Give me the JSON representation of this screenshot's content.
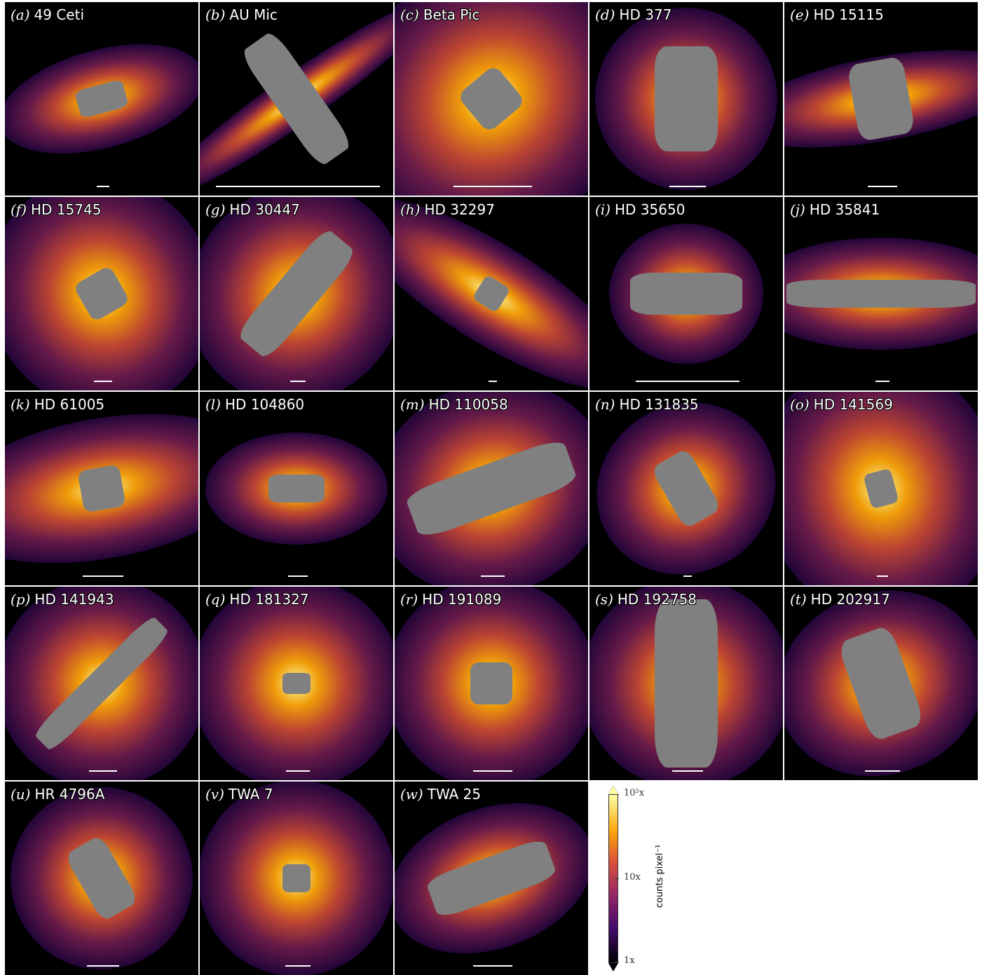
{
  "panels": [
    {
      "tag": "(a)",
      "name": "49 Ceti"
    },
    {
      "tag": "(b)",
      "name": "AU Mic"
    },
    {
      "tag": "(c)",
      "name": "Beta Pic"
    },
    {
      "tag": "(d)",
      "name": "HD 377"
    },
    {
      "tag": "(e)",
      "name": "HD 15115"
    },
    {
      "tag": "(f)",
      "name": "HD 15745"
    },
    {
      "tag": "(g)",
      "name": "HD 30447"
    },
    {
      "tag": "(h)",
      "name": "HD 32297"
    },
    {
      "tag": "(i)",
      "name": "HD 35650"
    },
    {
      "tag": "(j)",
      "name": "HD 35841"
    },
    {
      "tag": "(k)",
      "name": "HD 61005"
    },
    {
      "tag": "(l)",
      "name": "HD 104860"
    },
    {
      "tag": "(m)",
      "name": "HD 110058"
    },
    {
      "tag": "(n)",
      "name": "HD 131835"
    },
    {
      "tag": "(o)",
      "name": "HD 141569"
    },
    {
      "tag": "(p)",
      "name": "HD 141943"
    },
    {
      "tag": "(q)",
      "name": "HD 181327"
    },
    {
      "tag": "(r)",
      "name": "HD 191089"
    },
    {
      "tag": "(s)",
      "name": "HD 192758"
    },
    {
      "tag": "(t)",
      "name": "HD 202917"
    },
    {
      "tag": "(u)",
      "name": "HR 4796A"
    },
    {
      "tag": "(v)",
      "name": "TWA 7"
    },
    {
      "tag": "(w)",
      "name": "TWA 25"
    }
  ],
  "colorbar": {
    "label": "counts pixel⁻¹",
    "log_scale": true,
    "lim": [
      1,
      100
    ],
    "ticks": [
      {
        "value": 1,
        "label": "1x"
      },
      {
        "value": 10,
        "label": "10x"
      },
      {
        "value": 100,
        "label": "10²x"
      }
    ]
  }
}
